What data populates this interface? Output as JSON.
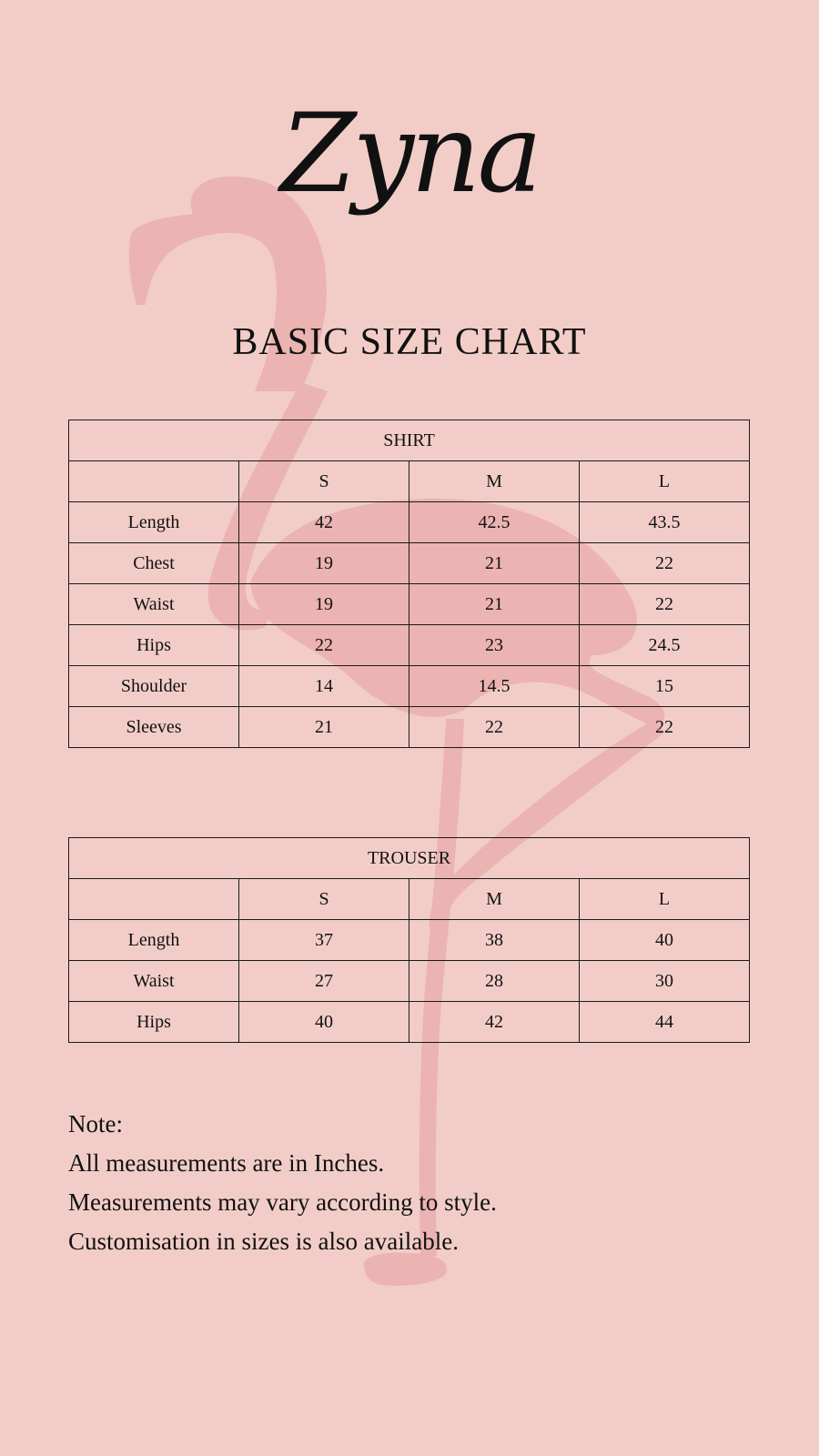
{
  "brand": {
    "logo_text": "Zyna"
  },
  "title": "BASIC SIZE CHART",
  "colors": {
    "background": "#f2cdc8",
    "flamingo": "#ebb3b1",
    "text": "#111111"
  },
  "decoration": "flamingo-silhouette",
  "shirt": {
    "title": "SHIRT",
    "sizes": [
      "S",
      "M",
      "L"
    ],
    "rows": [
      {
        "label": "Length",
        "values": [
          "42",
          "42.5",
          "43.5"
        ]
      },
      {
        "label": "Chest",
        "values": [
          "19",
          "21",
          "22"
        ]
      },
      {
        "label": "Waist",
        "values": [
          "19",
          "21",
          "22"
        ]
      },
      {
        "label": "Hips",
        "values": [
          "22",
          "23",
          "24.5"
        ]
      },
      {
        "label": "Shoulder",
        "values": [
          "14",
          "14.5",
          "15"
        ]
      },
      {
        "label": "Sleeves",
        "values": [
          "21",
          "22",
          "22"
        ]
      }
    ]
  },
  "trouser": {
    "title": "TROUSER",
    "sizes": [
      "S",
      "M",
      "L"
    ],
    "rows": [
      {
        "label": "Length",
        "values": [
          "37",
          "38",
          "40"
        ]
      },
      {
        "label": "Waist",
        "values": [
          "27",
          "28",
          "30"
        ]
      },
      {
        "label": "Hips",
        "values": [
          "40",
          "42",
          "44"
        ]
      }
    ]
  },
  "note": {
    "heading": "Note:",
    "lines": [
      "All measurements are in Inches.",
      "Measurements may vary according to style.",
      "Customisation in sizes is also available."
    ]
  }
}
